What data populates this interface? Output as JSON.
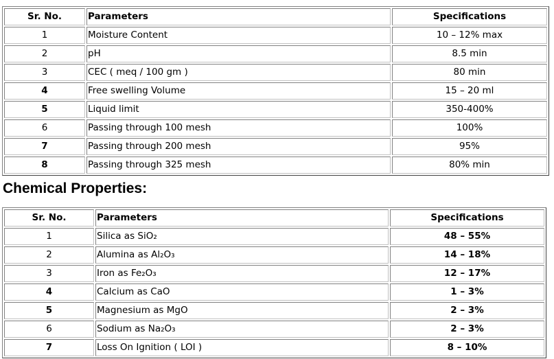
{
  "physical_table": {
    "headers": [
      "Sr. No.",
      "Parameters",
      "Specifications"
    ],
    "rows": [
      {
        "no": "1",
        "param": "Moisture Content",
        "spec": "10 – 12% max"
      },
      {
        "no": "2",
        "param": "pH",
        "spec": "8.5 min"
      },
      {
        "no": "3",
        "param": "CEC ( meq / 100 gm )",
        "spec": "80 min"
      },
      {
        "no": "4",
        "param": "Free swelling Volume",
        "spec": "15 – 20 ml"
      },
      {
        "no": "5",
        "param": "Liquid limit",
        "spec": "350-400%"
      },
      {
        "no": "6",
        "param": "Passing through 100 mesh",
        "spec": "100%"
      },
      {
        "no": "7",
        "param": "Passing through 200 mesh",
        "spec": "95%"
      },
      {
        "no": "8",
        "param": "Passing through 325 mesh",
        "spec": "80% min"
      }
    ]
  },
  "chemical_heading": "Chemical Properties:",
  "chemical_table": {
    "headers": [
      "Sr. No.",
      "Parameters",
      "Specifications"
    ],
    "rows": [
      {
        "no": "1",
        "param": "Silica as SiO₂",
        "spec": "48 – 55%"
      },
      {
        "no": "2",
        "param": "Alumina as Al₂O₃",
        "spec": "14 – 18%"
      },
      {
        "no": "3",
        "param": "Iron as Fe₂O₃",
        "spec": "12 – 17%"
      },
      {
        "no": "4",
        "param": "Calcium as CaO",
        "spec": "1 – 3%"
      },
      {
        "no": "5",
        "param": "Magnesium as MgO",
        "spec": "2 – 3%"
      },
      {
        "no": "6",
        "param": "Sodium as Na₂O₃",
        "spec": "2 – 3%"
      },
      {
        "no": "7",
        "param": "Loss On Ignition ( LOI )",
        "spec": "8 – 10%"
      }
    ]
  }
}
